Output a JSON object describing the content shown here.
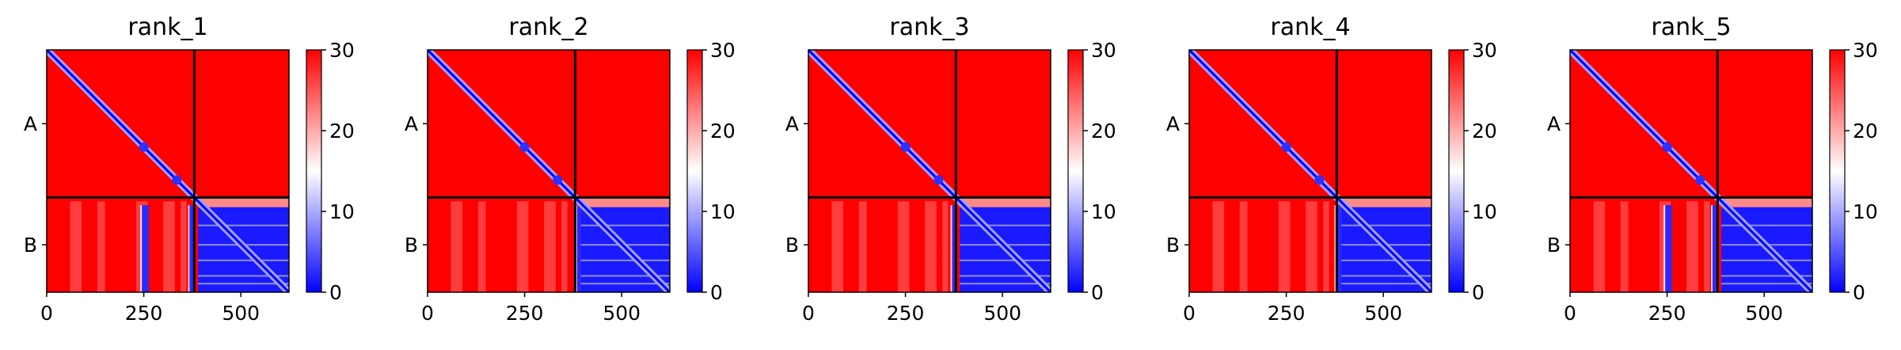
{
  "chart_data": [
    {
      "type": "heatmap",
      "title": "rank_1",
      "chains": [
        "A",
        "B"
      ],
      "chain_boundary": 380,
      "xlim": [
        0,
        624
      ],
      "ylim": [
        624,
        0
      ],
      "xticks": [
        "0",
        "250",
        "500"
      ],
      "yticks": [
        "A",
        "B"
      ],
      "colorbar": {
        "min": 0,
        "max": 30,
        "ticks": [
          "0",
          "10",
          "20",
          "30"
        ],
        "cmap": [
          "#0000ff",
          "#ffffff",
          "#ff0000"
        ]
      },
      "low_bands": [
        {
          "x0": 245,
          "x1": 263
        },
        {
          "x0": 368,
          "x1": 378
        }
      ]
    },
    {
      "type": "heatmap",
      "title": "rank_2",
      "chains": [
        "A",
        "B"
      ],
      "chain_boundary": 380,
      "xlim": [
        0,
        624
      ],
      "ylim": [
        624,
        0
      ],
      "xticks": [
        "0",
        "250",
        "500"
      ],
      "yticks": [
        "A",
        "B"
      ],
      "colorbar": {
        "min": 0,
        "max": 30,
        "ticks": [
          "0",
          "10",
          "20",
          "30"
        ],
        "cmap": [
          "#0000ff",
          "#ffffff",
          "#ff0000"
        ]
      },
      "low_bands": [
        {
          "x0": 385,
          "x1": 395
        }
      ]
    },
    {
      "type": "heatmap",
      "title": "rank_3",
      "chains": [
        "A",
        "B"
      ],
      "chain_boundary": 380,
      "xlim": [
        0,
        624
      ],
      "ylim": [
        624,
        0
      ],
      "xticks": [
        "0",
        "250",
        "500"
      ],
      "yticks": [
        "A",
        "B"
      ],
      "colorbar": {
        "min": 0,
        "max": 30,
        "ticks": [
          "0",
          "10",
          "20",
          "30"
        ],
        "cmap": [
          "#0000ff",
          "#ffffff",
          "#ff0000"
        ]
      },
      "low_bands": [
        {
          "x0": 370,
          "x1": 382
        }
      ]
    },
    {
      "type": "heatmap",
      "title": "rank_4",
      "chains": [
        "A",
        "B"
      ],
      "chain_boundary": 380,
      "xlim": [
        0,
        624
      ],
      "ylim": [
        624,
        0
      ],
      "xticks": [
        "0",
        "250",
        "500"
      ],
      "yticks": [
        "A",
        "B"
      ],
      "colorbar": {
        "min": 0,
        "max": 30,
        "ticks": [
          "0",
          "10",
          "20",
          "30"
        ],
        "cmap": [
          "#0000ff",
          "#ffffff",
          "#ff0000"
        ]
      },
      "low_bands": [
        {
          "x0": 378,
          "x1": 392
        }
      ]
    },
    {
      "type": "heatmap",
      "title": "rank_5",
      "chains": [
        "A",
        "B"
      ],
      "chain_boundary": 380,
      "xlim": [
        0,
        624
      ],
      "ylim": [
        624,
        0
      ],
      "xticks": [
        "0",
        "250",
        "500"
      ],
      "yticks": [
        "A",
        "B"
      ],
      "colorbar": {
        "min": 0,
        "max": 30,
        "ticks": [
          "0",
          "10",
          "20",
          "30"
        ],
        "cmap": [
          "#0000ff",
          "#ffffff",
          "#ff0000"
        ]
      },
      "low_bands": [
        {
          "x0": 245,
          "x1": 262
        },
        {
          "x0": 367,
          "x1": 377
        }
      ]
    }
  ]
}
